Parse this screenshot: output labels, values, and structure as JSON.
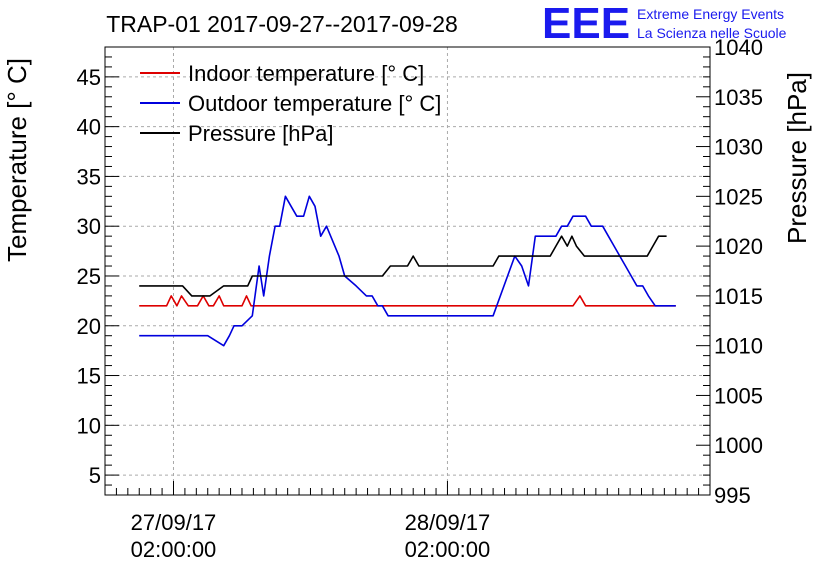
{
  "chart_data": {
    "type": "line",
    "title": "TRAP-01 2017-09-27--2017-09-28",
    "logo": {
      "mark": "EEE",
      "line1": "Extreme Energy Events",
      "line2": "La Scienza nelle Scuole"
    },
    "ylabel_left": "Temperature [° C]",
    "ylabel_right": "Pressure [hPa]",
    "ylim_left": [
      3,
      48
    ],
    "ylim_right": [
      995,
      1040
    ],
    "left_ticks": [
      5,
      10,
      15,
      20,
      25,
      30,
      35,
      40,
      45
    ],
    "left_tick_labels": [
      "5",
      "10",
      "15",
      "20",
      "25",
      "30",
      "35",
      "40",
      "45"
    ],
    "right_ticks": [
      995,
      1000,
      1005,
      1010,
      1015,
      1020,
      1025,
      1030,
      1035,
      1040
    ],
    "right_tick_labels": [
      "995",
      "1000",
      "1005",
      "1010",
      "1015",
      "1020",
      "1025",
      "1030",
      "1035",
      "1040"
    ],
    "xlim": [
      0,
      53
    ],
    "x_ticks": [
      6,
      30
    ],
    "x_tick_labels_line1": [
      "27/09/17",
      "28/09/17"
    ],
    "x_tick_labels_line2": [
      "02:00:00",
      "02:00:00"
    ],
    "legend": [
      "Indoor temperature [° C]",
      "Outdoor temperature [° C]",
      "Pressure [hPa]"
    ],
    "colors": {
      "indoor": "#dd0000",
      "outdoor": "#0000dd",
      "pressure": "#000000",
      "grid": "#aaaaaa",
      "logo": "#1a1aee"
    },
    "series": [
      {
        "name": "Indoor temperature [° C]",
        "axis": "left",
        "x": [
          3,
          5.4,
          5.8,
          6.3,
          6.7,
          7.3,
          8.1,
          8.6,
          9.1,
          9.5,
          10,
          10.4,
          11,
          12,
          12.4,
          12.8,
          25,
          38,
          41,
          41.6,
          42.1,
          50
        ],
        "values": [
          22,
          22,
          23,
          22,
          23,
          22,
          22,
          23,
          22,
          22,
          23,
          22,
          22,
          22,
          23,
          22,
          22,
          22,
          22,
          23,
          22,
          22
        ]
      },
      {
        "name": "Outdoor temperature [° C]",
        "axis": "left",
        "x": [
          3,
          9,
          10.4,
          10.9,
          11.3,
          12,
          12.9,
          13.5,
          13.9,
          14.4,
          14.9,
          15.3,
          15.8,
          16.3,
          16.8,
          17.4,
          17.9,
          18.4,
          18.9,
          19.4,
          20.5,
          21,
          22,
          22.9,
          23.4,
          23.9,
          24.3,
          24.8,
          25.3,
          28.5,
          34,
          35.9,
          36.5,
          37.1,
          37.7,
          38.3,
          39.5,
          40,
          40.5,
          41,
          41.5,
          42.1,
          42.6,
          43.1,
          43.6,
          44.1,
          44.6,
          45.1,
          45.6,
          46.1,
          46.6,
          47.1,
          47.6,
          48.2,
          48.7,
          50
        ],
        "values": [
          19,
          19,
          18,
          19,
          20,
          20,
          21,
          26,
          23,
          27,
          30,
          30,
          33,
          32,
          31,
          31,
          33,
          32,
          29,
          30,
          27,
          25,
          24,
          23,
          23,
          22,
          22,
          21,
          21,
          21,
          21,
          27,
          26,
          24,
          29,
          29,
          29,
          30,
          30,
          31,
          31,
          31,
          30,
          30,
          30,
          29,
          28,
          27,
          26,
          25,
          24,
          24,
          23,
          22,
          22,
          22
        ]
      },
      {
        "name": "Pressure [hPa]",
        "axis": "right",
        "x": [
          3,
          6.8,
          7.6,
          9.2,
          10.4,
          11.5,
          12.5,
          12.9,
          20,
          24.3,
          25,
          26.5,
          27,
          27.5,
          28,
          34,
          34.5,
          35,
          39,
          39.5,
          40,
          40.5,
          40.9,
          41.3,
          42,
          47,
          47.5,
          48,
          48.5,
          49.2
        ],
        "values": [
          1016,
          1016,
          1015,
          1015,
          1016,
          1016,
          1016,
          1017,
          1017,
          1017,
          1018,
          1018,
          1019,
          1018,
          1018,
          1018,
          1019,
          1019,
          1019,
          1020,
          1021,
          1020,
          1021,
          1020,
          1019,
          1019,
          1019,
          1020,
          1021,
          1021
        ]
      }
    ]
  }
}
